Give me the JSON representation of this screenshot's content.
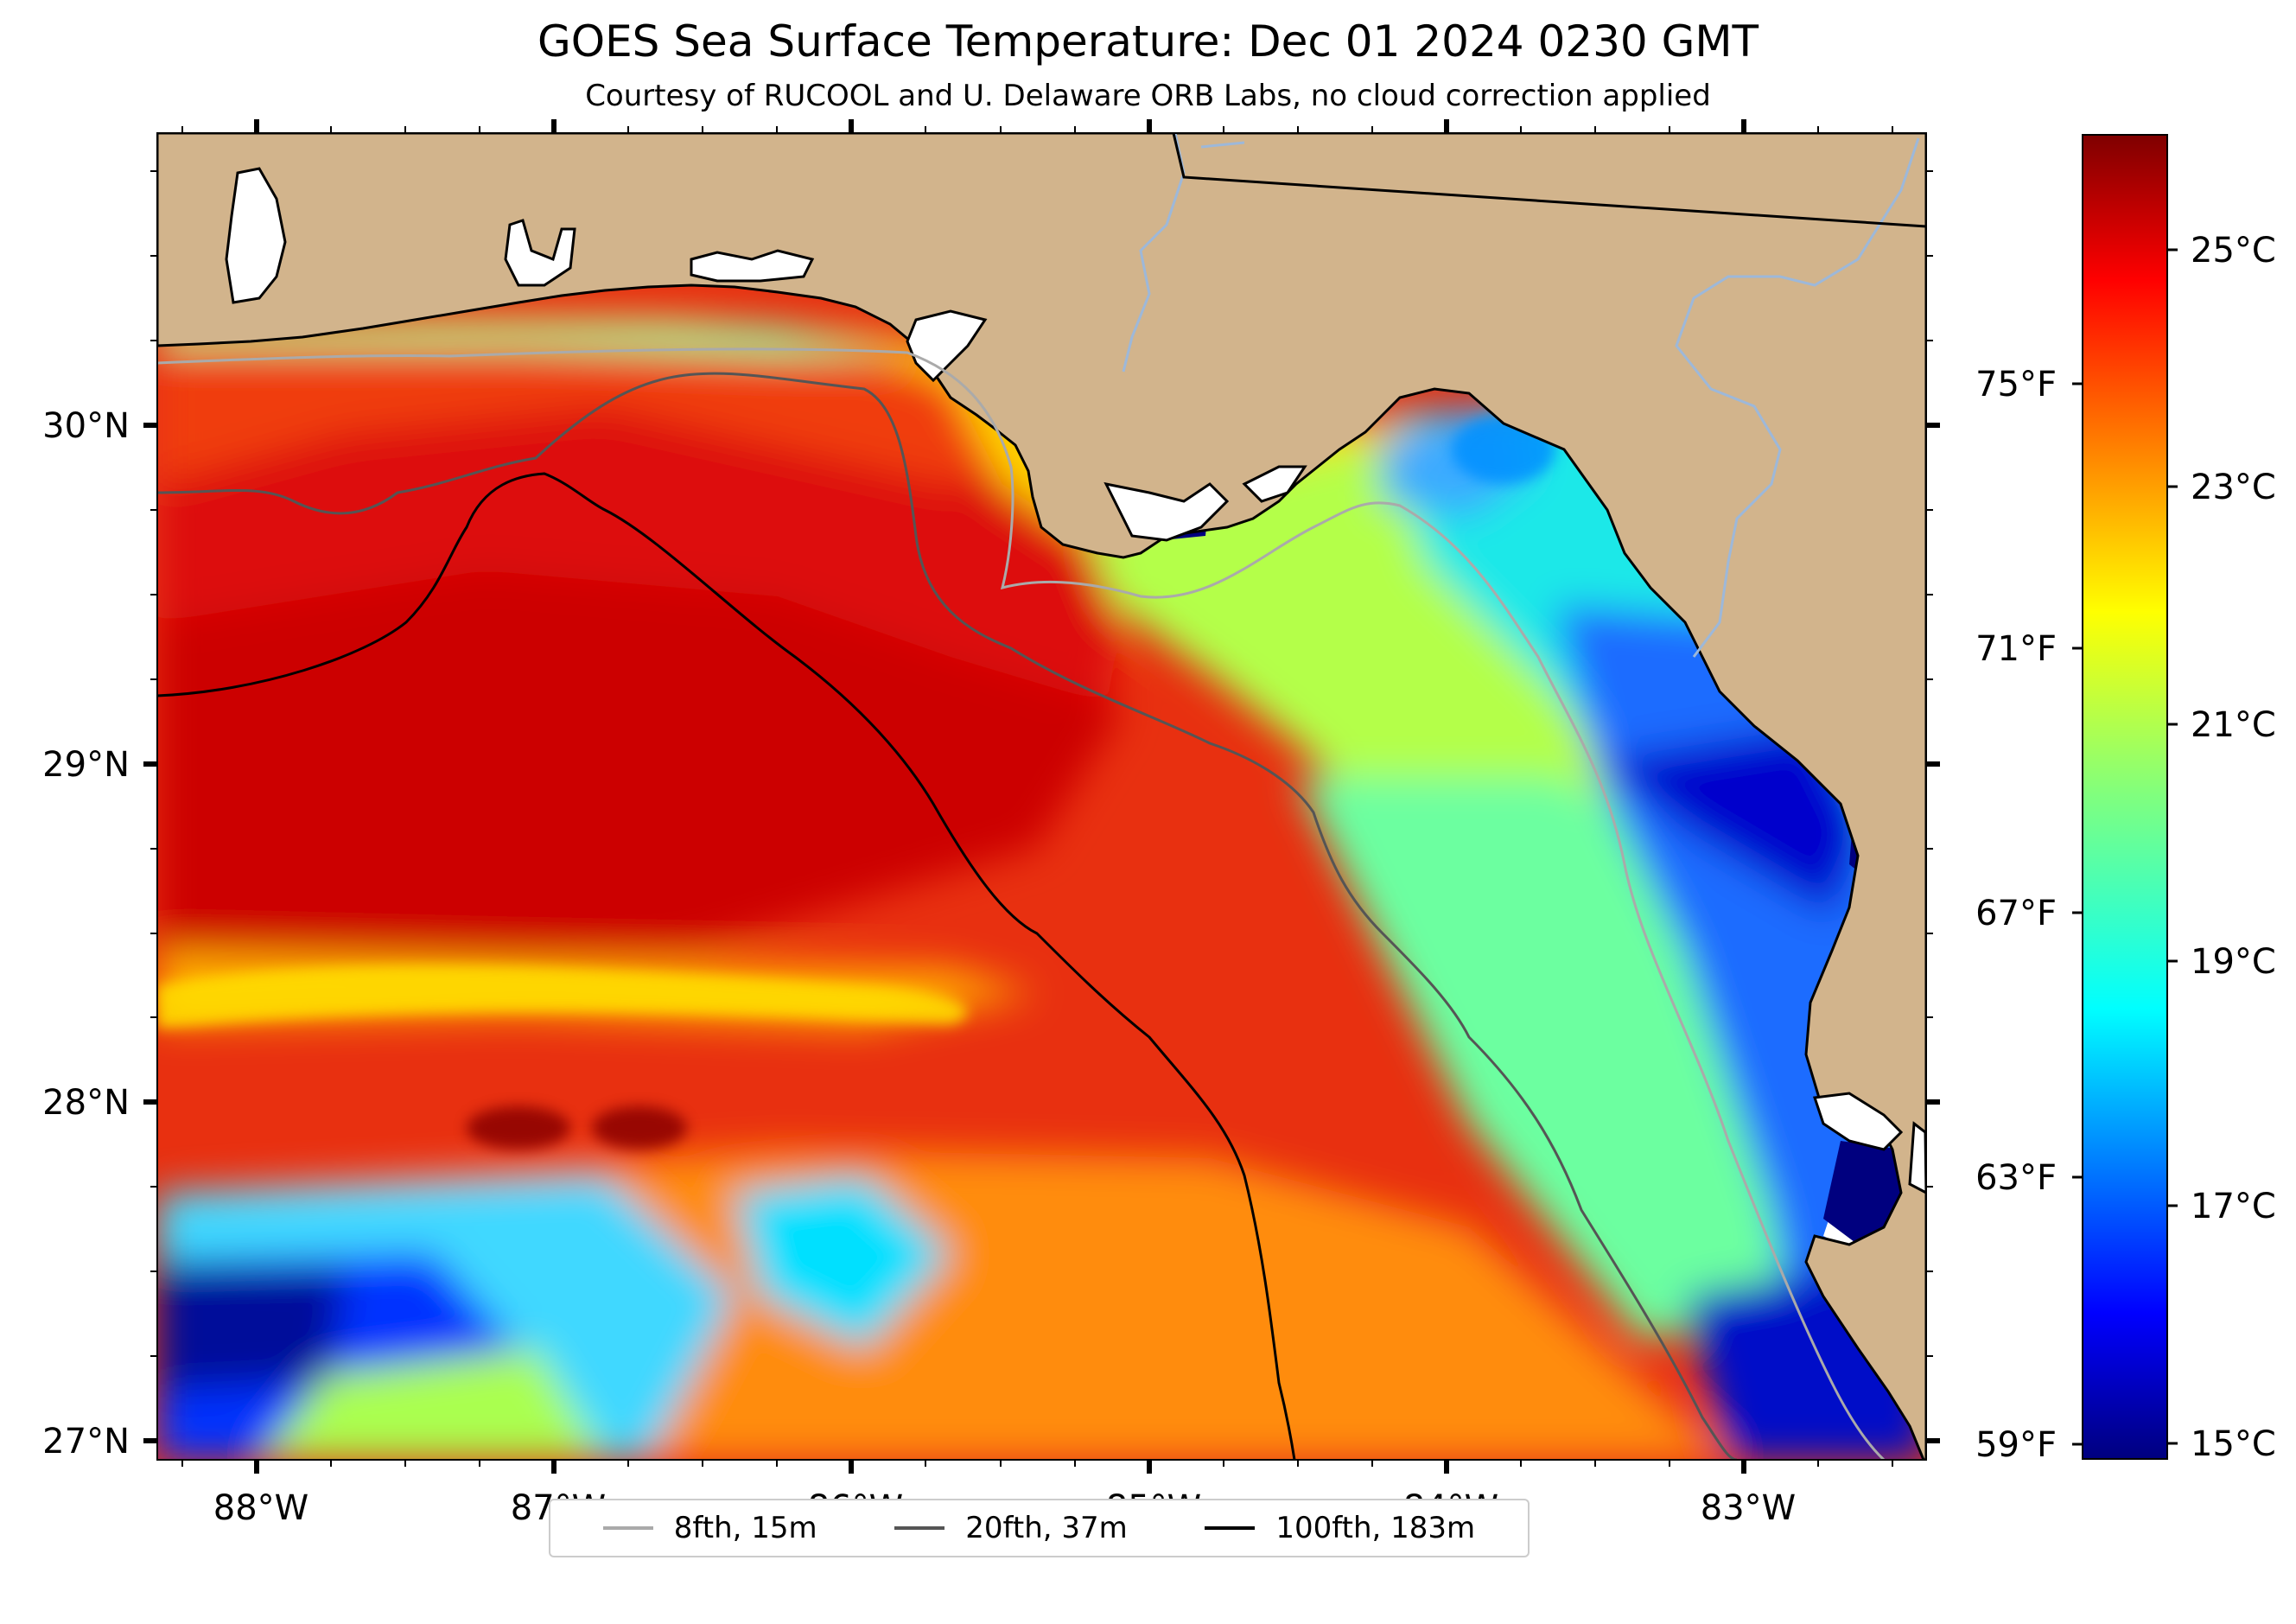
{
  "title": "GOES Sea Surface Temperature: Dec 01 2024 0230 GMT",
  "subtitle": "Courtesy of RUCOOL and U. Delaware ORB Labs, no cloud correction applied",
  "map": {
    "lon_range": [
      -88.33,
      -82.4
    ],
    "lat_range": [
      26.93,
      30.85
    ],
    "lon_ticks": [
      "88°W",
      "87°W",
      "86°W",
      "85°W",
      "84°W",
      "83°W"
    ],
    "lat_ticks": [
      "30°N",
      "29°N",
      "28°N",
      "27°N"
    ],
    "land_color": "#d2b48c",
    "no_data_color": "#ffffff",
    "river_color": "#9db8d9",
    "colormap": "jet"
  },
  "colorbar": {
    "range_c": [
      14.8,
      26.2
    ],
    "celsius_labels": [
      "25°C",
      "23°C",
      "21°C",
      "19°C",
      "17°C",
      "15°C"
    ],
    "fahrenheit_labels": [
      "75°F",
      "71°F",
      "67°F",
      "63°F",
      "59°F"
    ]
  },
  "legend": [
    {
      "label": "8fth, 15m",
      "color": "#aaaaaa"
    },
    {
      "label": "20fth, 37m",
      "color": "#555555"
    },
    {
      "label": "100fth, 183m",
      "color": "#000000"
    }
  ]
}
